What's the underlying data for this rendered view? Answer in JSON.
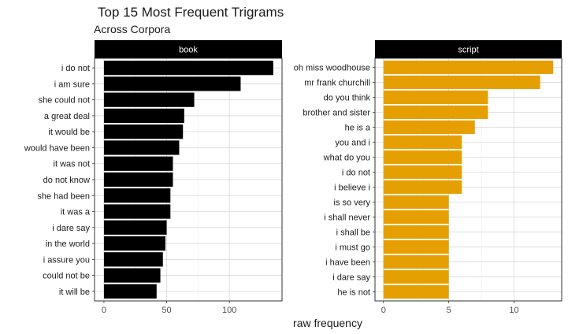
{
  "title": "Top 15 Most Frequent Trigrams",
  "subtitle": "Across Corpora",
  "x_axis_label": "raw frequency",
  "chart_data": [
    {
      "type": "bar",
      "orientation": "horizontal",
      "facet": "book",
      "color": "#000000",
      "categories": [
        "i do not",
        "i am sure",
        "she could not",
        "a great deal",
        "it would be",
        "would have been",
        "it was not",
        "do not know",
        "she had been",
        "it was a",
        "i dare say",
        "in the world",
        "i assure you",
        "could not be",
        "it will be"
      ],
      "values": [
        135,
        109,
        72,
        64,
        63,
        60,
        55,
        55,
        53,
        53,
        50,
        49,
        47,
        45,
        42
      ],
      "xlim": [
        -7.5,
        142
      ],
      "xticks": [
        0,
        50,
        100
      ],
      "grid": true,
      "xlabel": "raw frequency"
    },
    {
      "type": "bar",
      "orientation": "horizontal",
      "facet": "script",
      "color": "#E69F00",
      "categories": [
        "oh miss woodhouse",
        "mr frank churchill",
        "do you think",
        "brother and sister",
        "he is a",
        "you and i",
        "what do you",
        "i do not",
        "i believe i",
        "is so very",
        "i shall never",
        "i shall be",
        "i must go",
        "i have been",
        "i dare say",
        "he is not"
      ],
      "values": [
        13,
        12,
        8,
        8,
        7,
        6,
        6,
        6,
        6,
        5,
        5,
        5,
        5,
        5,
        5,
        5
      ],
      "xlim": [
        -0.65,
        13.65
      ],
      "xticks": [
        0,
        5,
        10
      ],
      "grid": true,
      "xlabel": "raw frequency"
    }
  ]
}
